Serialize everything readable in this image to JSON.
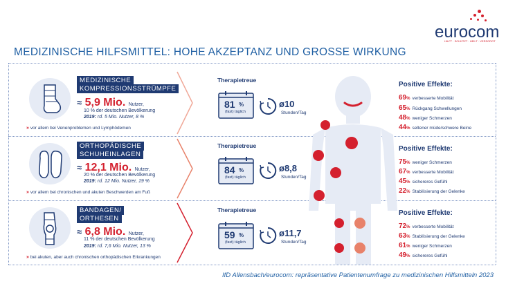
{
  "logo": {
    "text": "eurocom",
    "tagline": "HILFT · SCHÜTZT · HEILT · VERSORGT"
  },
  "title": "MEDIZINISCHE HILFSMITTEL: HOHE AKZEPTANZ UND GROSSE WIRKUNG",
  "rows": [
    {
      "name": "Medizinische Kompressionsstrümpfe",
      "title_line1": "MEDIZINISCHE",
      "title_line2": "KOMPRESSIONSSTRÜMPFE",
      "approx": "≈",
      "users": "5,9 Mio.",
      "users_unit": "Nutzer,",
      "share": "10 % der deutschen Bevölkerung",
      "y2019_label": "2019:",
      "y2019": "rd. 5 Mio. Nutzer, 8 %",
      "note": "vor allem bei Venenproblemen und Lymphödemen",
      "therapietreue": "Therapietreue",
      "pct": "81",
      "pct_sign": "%",
      "pct_sub": "(fast) täglich",
      "hours_prefix": "ø",
      "hours": "10",
      "hours_unit": "Stunden/Tag",
      "effects_title": "Positive Effekte:",
      "effects": [
        {
          "num": "69",
          "pct": "%",
          "label": "verbesserte Mobilität"
        },
        {
          "num": "65",
          "pct": "%",
          "label": "Rückgang Schwellungen"
        },
        {
          "num": "48",
          "pct": "%",
          "label": "weniger Schmerzen"
        },
        {
          "num": "44",
          "pct": "%",
          "label": "seltener müde/schwere Beine"
        }
      ]
    },
    {
      "name": "Orthopädische Schuheinlagen",
      "title_line1": "ORTHOPÄDISCHE",
      "title_line2": "SCHUHEINLAGEN",
      "approx": "≈",
      "users": "12,1 Mio.",
      "users_unit": "Nutzer,",
      "share": "20 % der deutschen Bevölkerung",
      "y2019_label": "2019:",
      "y2019": "rd. 12 Mio. Nutzer, 19 %",
      "note": "vor allem bei chronischen und akuten Beschwerden am Fuß",
      "therapietreue": "Therapietreue",
      "pct": "84",
      "pct_sign": "%",
      "pct_sub": "(fast) täglich",
      "hours_prefix": "ø",
      "hours": "8,8",
      "hours_unit": "Stunden/Tag",
      "effects_title": "Positive Effekte:",
      "effects": [
        {
          "num": "75",
          "pct": "%",
          "label": "weniger Schmerzen"
        },
        {
          "num": "67",
          "pct": "%",
          "label": "verbesserte Mobilität"
        },
        {
          "num": "45",
          "pct": "%",
          "label": "sichereres Gefühl"
        },
        {
          "num": "22",
          "pct": "%",
          "label": "Stabilisierung der Gelenke"
        }
      ]
    },
    {
      "name": "Bandagen/Orthesen",
      "title_line1": "BANDAGEN/",
      "title_line2": "ORTHESEN",
      "approx": "≈",
      "users": "6,8 Mio.",
      "users_unit": "Nutzer,",
      "share": "11 % der deutschen Bevölkerung",
      "y2019_label": "2019:",
      "y2019": "rd. 7,6 Mio. Nutzer, 13 %",
      "note": "bei akuten, aber auch chronischen orthopädischen Erkrankungen",
      "therapietreue": "Therapietreue",
      "pct": "59",
      "pct_sign": "%",
      "pct_sub": "(fast) täglich",
      "hours_prefix": "ø",
      "hours": "11,7",
      "hours_unit": "Stunden/Tag",
      "effects_title": "Positive Effekte:",
      "effects": [
        {
          "num": "72",
          "pct": "%",
          "label": "verbesserte Mobilität"
        },
        {
          "num": "63",
          "pct": "%",
          "label": "Stabilisierung der Gelenke"
        },
        {
          "num": "61",
          "pct": "%",
          "label": "weniger Schmerzen"
        },
        {
          "num": "49",
          "pct": "%",
          "label": "sichereres Gefühl"
        }
      ]
    }
  ],
  "footer": "IfD Allensbach/eurocom: repräsentative Patientenumfrage zu medizinischen Hilfsmitteln 2023",
  "colors": {
    "navy": "#1f3a72",
    "red": "#d4202e",
    "blue": "#1f5fa3",
    "figure": "#e6ebf5",
    "salmon": "#e8826a"
  }
}
